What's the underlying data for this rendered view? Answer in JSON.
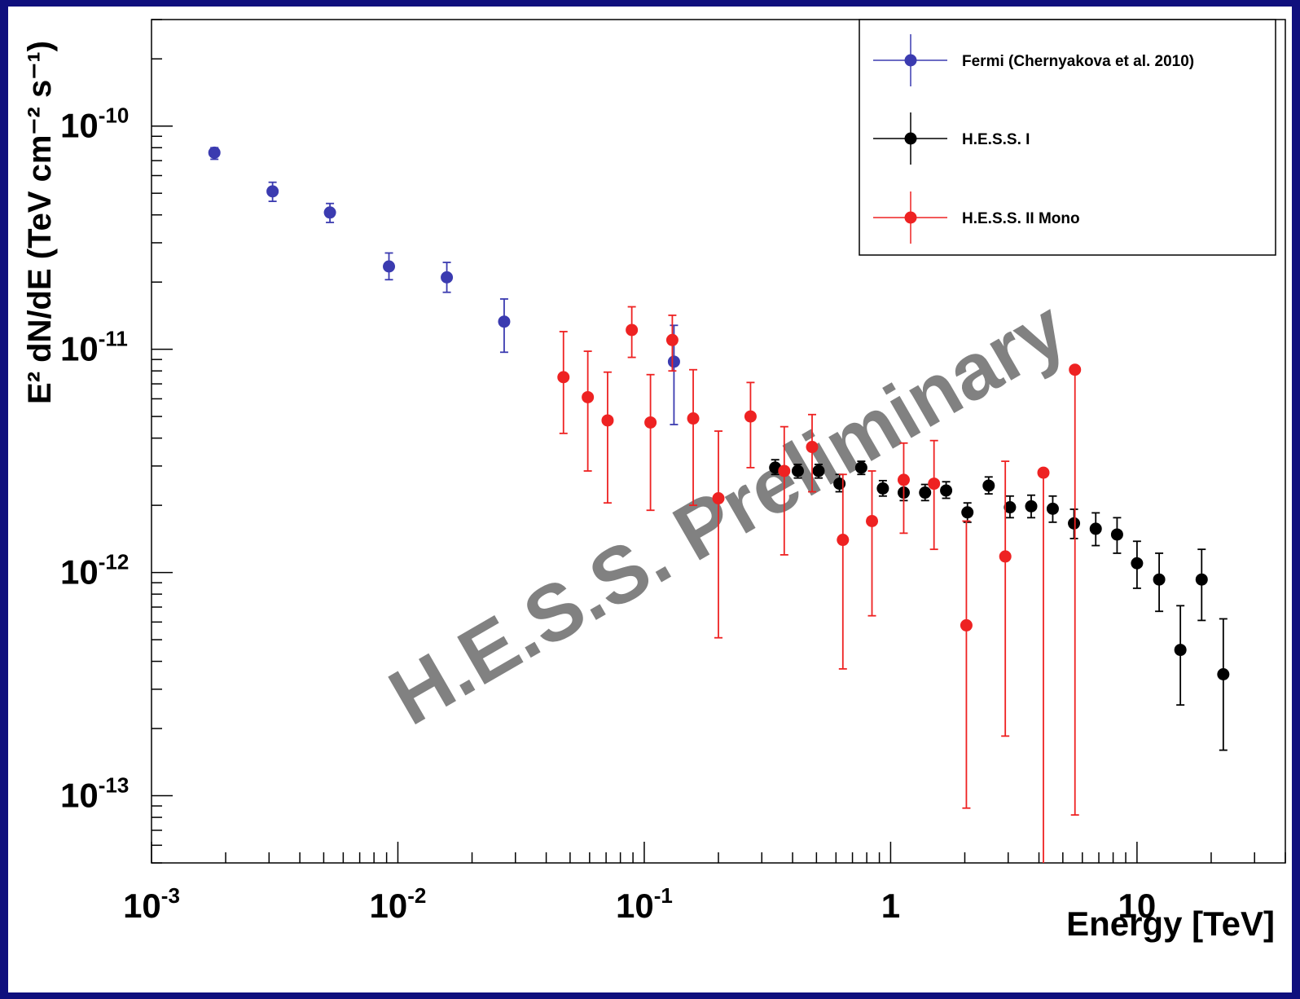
{
  "chart_data": {
    "type": "scatter",
    "xlabel": "Energy [TeV]",
    "ylabel": "E² dN/dE (TeV cm⁻² s⁻¹)",
    "xscale": "log",
    "yscale": "log",
    "xlim": [
      0.001,
      40
    ],
    "ylim": [
      5e-14,
      3e-10
    ],
    "grid": false,
    "legend_position": "top-right",
    "x_tick_labels": [
      {
        "value": 0.001,
        "base": "10",
        "exp": "-3"
      },
      {
        "value": 0.01,
        "base": "10",
        "exp": "-2"
      },
      {
        "value": 0.1,
        "base": "10",
        "exp": "-1"
      },
      {
        "value": 1,
        "base": "1",
        "exp": ""
      },
      {
        "value": 10,
        "base": "10",
        "exp": ""
      }
    ],
    "y_tick_labels": [
      {
        "value": 1e-10,
        "base": "10",
        "exp": "-10"
      },
      {
        "value": 1e-11,
        "base": "10",
        "exp": "-11"
      },
      {
        "value": 1e-12,
        "base": "10",
        "exp": "-12"
      },
      {
        "value": 1e-13,
        "base": "10",
        "exp": "-13"
      }
    ],
    "watermark": "H.E.S.S. Preliminary",
    "series": [
      {
        "name": "Fermi (Chernyakova et al. 2010)",
        "color": "#3b3bb0",
        "points": [
          {
            "x": 0.0018,
            "y": 7.6e-11,
            "ylo": 7.1e-11,
            "yhi": 8e-11
          },
          {
            "x": 0.0031,
            "y": 5.1e-11,
            "ylo": 4.6e-11,
            "yhi": 5.6e-11
          },
          {
            "x": 0.0053,
            "y": 4.1e-11,
            "ylo": 3.7e-11,
            "yhi": 4.5e-11
          },
          {
            "x": 0.0092,
            "y": 2.35e-11,
            "ylo": 2.05e-11,
            "yhi": 2.7e-11
          },
          {
            "x": 0.0158,
            "y": 2.1e-11,
            "ylo": 1.8e-11,
            "yhi": 2.45e-11
          },
          {
            "x": 0.027,
            "y": 1.33e-11,
            "ylo": 9.7e-12,
            "yhi": 1.68e-11
          },
          {
            "x": 0.132,
            "y": 8.8e-12,
            "ylo": 4.6e-12,
            "yhi": 1.28e-11
          }
        ]
      },
      {
        "name": "H.E.S.S. I",
        "color": "#000000",
        "points": [
          {
            "x": 0.34,
            "y": 2.95e-12,
            "ylo": 2.75e-12,
            "yhi": 3.2e-12
          },
          {
            "x": 0.42,
            "y": 2.85e-12,
            "ylo": 2.65e-12,
            "yhi": 3.05e-12
          },
          {
            "x": 0.51,
            "y": 2.85e-12,
            "ylo": 2.65e-12,
            "yhi": 3.05e-12
          },
          {
            "x": 0.62,
            "y": 2.5e-12,
            "ylo": 2.3e-12,
            "yhi": 2.75e-12
          },
          {
            "x": 0.76,
            "y": 2.95e-12,
            "ylo": 2.75e-12,
            "yhi": 3.15e-12
          },
          {
            "x": 0.93,
            "y": 2.38e-12,
            "ylo": 2.2e-12,
            "yhi": 2.58e-12
          },
          {
            "x": 1.13,
            "y": 2.28e-12,
            "ylo": 2.1e-12,
            "yhi": 2.5e-12
          },
          {
            "x": 1.38,
            "y": 2.28e-12,
            "ylo": 2.1e-12,
            "yhi": 2.48e-12
          },
          {
            "x": 1.68,
            "y": 2.33e-12,
            "ylo": 2.15e-12,
            "yhi": 2.55e-12
          },
          {
            "x": 2.05,
            "y": 1.86e-12,
            "ylo": 1.68e-12,
            "yhi": 2.05e-12
          },
          {
            "x": 2.5,
            "y": 2.45e-12,
            "ylo": 2.25e-12,
            "yhi": 2.68e-12
          },
          {
            "x": 3.05,
            "y": 1.96e-12,
            "ylo": 1.76e-12,
            "yhi": 2.2e-12
          },
          {
            "x": 3.72,
            "y": 1.98e-12,
            "ylo": 1.76e-12,
            "yhi": 2.22e-12
          },
          {
            "x": 4.55,
            "y": 1.93e-12,
            "ylo": 1.68e-12,
            "yhi": 2.2e-12
          },
          {
            "x": 5.55,
            "y": 1.66e-12,
            "ylo": 1.42e-12,
            "yhi": 1.92e-12
          },
          {
            "x": 6.8,
            "y": 1.57e-12,
            "ylo": 1.32e-12,
            "yhi": 1.85e-12
          },
          {
            "x": 8.3,
            "y": 1.48e-12,
            "ylo": 1.22e-12,
            "yhi": 1.76e-12
          },
          {
            "x": 10.0,
            "y": 1.1e-12,
            "ylo": 8.5e-13,
            "yhi": 1.38e-12
          },
          {
            "x": 12.3,
            "y": 9.3e-13,
            "ylo": 6.7e-13,
            "yhi": 1.22e-12
          },
          {
            "x": 15.0,
            "y": 4.5e-13,
            "ylo": 2.55e-13,
            "yhi": 7.1e-13
          },
          {
            "x": 18.3,
            "y": 9.3e-13,
            "ylo": 6.1e-13,
            "yhi": 1.27e-12
          },
          {
            "x": 22.4,
            "y": 3.5e-13,
            "ylo": 1.6e-13,
            "yhi": 6.2e-13
          }
        ]
      },
      {
        "name": "H.E.S.S. II Mono",
        "color": "#ee2222",
        "points": [
          {
            "x": 0.047,
            "y": 7.5e-12,
            "ylo": 4.2e-12,
            "yhi": 1.2e-11
          },
          {
            "x": 0.059,
            "y": 6.1e-12,
            "ylo": 2.85e-12,
            "yhi": 9.8e-12
          },
          {
            "x": 0.071,
            "y": 4.8e-12,
            "ylo": 2.05e-12,
            "yhi": 7.9e-12
          },
          {
            "x": 0.089,
            "y": 1.22e-11,
            "ylo": 9.2e-12,
            "yhi": 1.55e-11
          },
          {
            "x": 0.106,
            "y": 4.7e-12,
            "ylo": 1.9e-12,
            "yhi": 7.7e-12
          },
          {
            "x": 0.13,
            "y": 1.1e-11,
            "ylo": 8e-12,
            "yhi": 1.42e-11
          },
          {
            "x": 0.158,
            "y": 4.9e-12,
            "ylo": 2e-12,
            "yhi": 8.1e-12
          },
          {
            "x": 0.2,
            "y": 2.15e-12,
            "ylo": 5.1e-13,
            "yhi": 4.3e-12
          },
          {
            "x": 0.27,
            "y": 5e-12,
            "ylo": 2.95e-12,
            "yhi": 7.1e-12
          },
          {
            "x": 0.37,
            "y": 2.85e-12,
            "ylo": 1.2e-12,
            "yhi": 4.5e-12
          },
          {
            "x": 0.48,
            "y": 3.65e-12,
            "ylo": 2.3e-12,
            "yhi": 5.1e-12
          },
          {
            "x": 0.64,
            "y": 1.4e-12,
            "ylo": 3.7e-13,
            "yhi": 2.75e-12
          },
          {
            "x": 0.84,
            "y": 1.7e-12,
            "ylo": 6.4e-13,
            "yhi": 2.85e-12
          },
          {
            "x": 1.13,
            "y": 2.6e-12,
            "ylo": 1.5e-12,
            "yhi": 3.8e-12
          },
          {
            "x": 1.5,
            "y": 2.5e-12,
            "ylo": 1.27e-12,
            "yhi": 3.9e-12
          },
          {
            "x": 2.03,
            "y": 5.8e-13,
            "ylo": 8.8e-14,
            "yhi": 1.7e-12
          },
          {
            "x": 2.92,
            "y": 1.18e-12,
            "ylo": 1.85e-13,
            "yhi": 3.15e-12
          },
          {
            "x": 4.17,
            "y": 2.8e-12,
            "ylo": 5e-14,
            "yhi": 2.8e-12
          },
          {
            "x": 5.6,
            "y": 8.1e-12,
            "ylo": 8.2e-14,
            "yhi": 8.1e-12
          }
        ]
      }
    ]
  }
}
